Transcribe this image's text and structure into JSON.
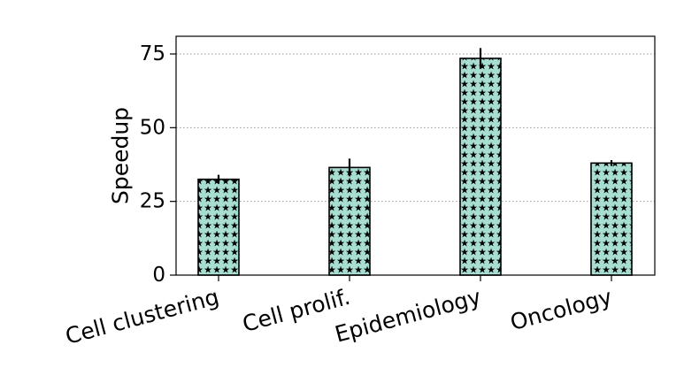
{
  "chart_data": {
    "type": "bar",
    "title": "",
    "xlabel": "",
    "ylabel": "Speedup",
    "ylim": [
      0,
      81
    ],
    "yticks": [
      0,
      25,
      50,
      75
    ],
    "grid": "y-dotted",
    "categories": [
      "Cell clustering",
      "Cell prolif.",
      "Epidemiology",
      "Oncology"
    ],
    "values": [
      32.5,
      36.5,
      73.5,
      38.0
    ],
    "errors": [
      1.5,
      3.0,
      3.5,
      1.0
    ],
    "bar_color": "#a8ddd2",
    "hatch": "stars",
    "edge_color": "#000000"
  }
}
